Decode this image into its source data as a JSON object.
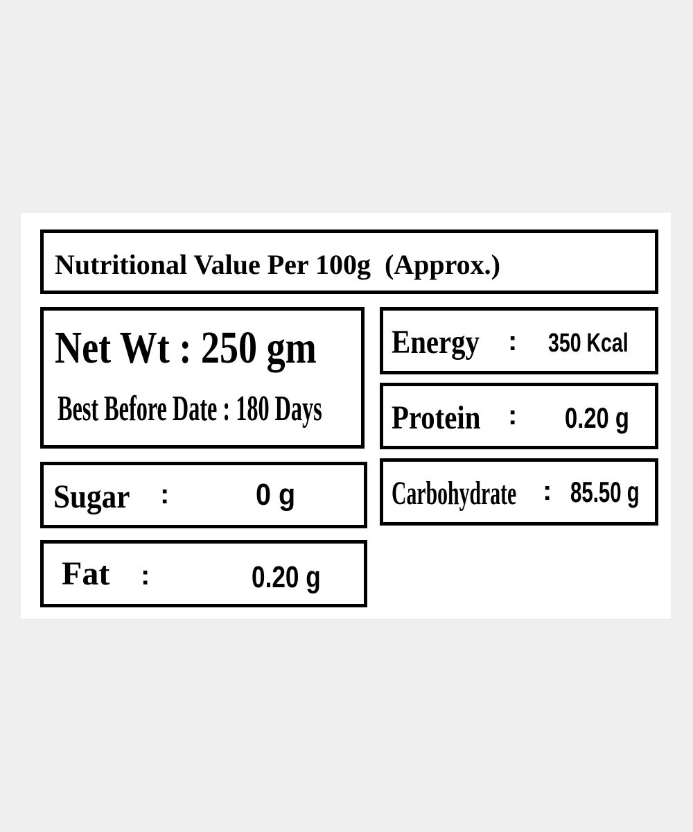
{
  "title": "Nutritional Value Per 100g  (Approx.)",
  "net_weight": "Net Wt : 250 gm",
  "best_before": "Best Before Date : 180 Days",
  "items": [
    {
      "label": "Energy",
      "separator": ":",
      "value": "350 Kcal"
    },
    {
      "label": "Protein",
      "separator": ":",
      "value": "0.20 g"
    },
    {
      "label": "Carbohydrate",
      "separator": ":",
      "value": "85.50 g"
    },
    {
      "label": "Sugar",
      "separator": ":",
      "value": "0 g"
    },
    {
      "label": "Fat",
      "separator": ":",
      "value": "0.20 g"
    }
  ]
}
